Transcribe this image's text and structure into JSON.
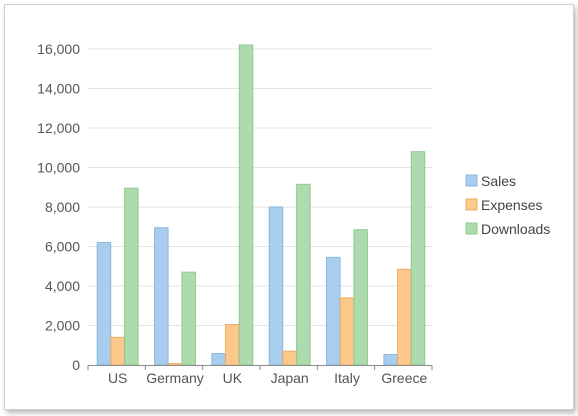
{
  "chart_data": {
    "type": "bar",
    "categories": [
      "US",
      "Germany",
      "UK",
      "Japan",
      "Italy",
      "Greece"
    ],
    "series": [
      {
        "name": "Sales",
        "values": [
          6200,
          6950,
          580,
          8000,
          5450,
          530
        ],
        "color": "#a9cdee",
        "stroke": "#8ab6df"
      },
      {
        "name": "Expenses",
        "values": [
          1400,
          70,
          2050,
          700,
          3400,
          4850
        ],
        "color": "#fdc88b",
        "stroke": "#f0ae62"
      },
      {
        "name": "Downloads",
        "values": [
          8950,
          4700,
          16200,
          9150,
          6850,
          10800
        ],
        "color": "#addbad",
        "stroke": "#8fc98f"
      }
    ],
    "title": "",
    "xlabel": "",
    "ylabel": "",
    "ylim": [
      0,
      16000
    ],
    "yticks": [
      0,
      2000,
      4000,
      6000,
      8000,
      10000,
      12000,
      14000,
      16000
    ],
    "ytick_labels": [
      "0",
      "2,000",
      "4,000",
      "6,000",
      "8,000",
      "10,000",
      "12,000",
      "14,000",
      "16,000"
    ],
    "grid": true,
    "legend": "right"
  }
}
